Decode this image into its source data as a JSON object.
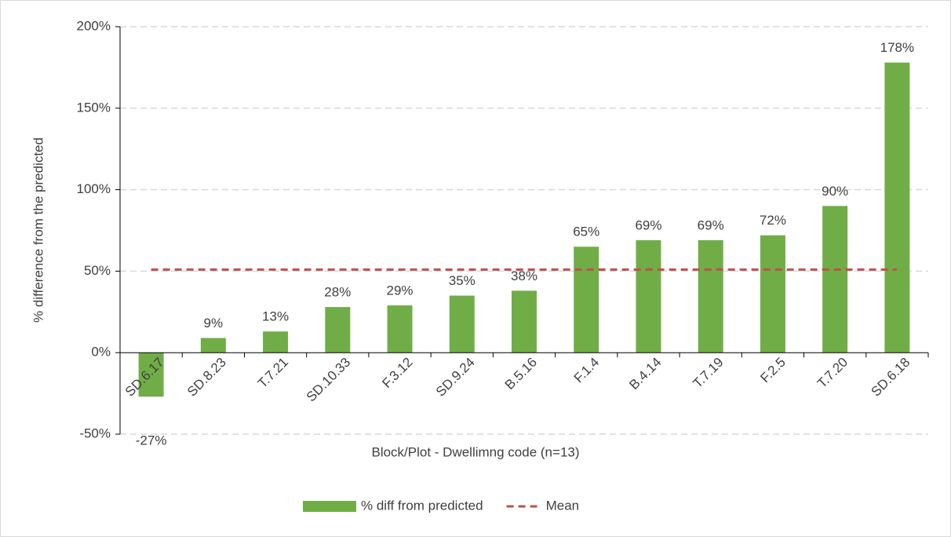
{
  "chart_data": {
    "type": "bar",
    "categories": [
      "SD.6.17",
      "SD.8.23",
      "T.7.21",
      "SD.10.33",
      "F.3.12",
      "SD.9.24",
      "B.5.16",
      "F.1.4",
      "B.4.14",
      "T.7.19",
      "F.2.5",
      "T.7.20",
      "SD.6.18"
    ],
    "series": [
      {
        "name": "% diff from predicted",
        "color": "#70ad47",
        "values": [
          -27,
          9,
          13,
          28,
          29,
          35,
          38,
          65,
          69,
          69,
          72,
          90,
          178
        ],
        "value_labels": [
          "-27%",
          "9%",
          "13%",
          "28%",
          "29%",
          "35%",
          "38%",
          "65%",
          "69%",
          "69%",
          "72%",
          "90%",
          "178%"
        ]
      },
      {
        "name": "Mean",
        "color": "#c0504d",
        "type": "line",
        "dashed": true,
        "values": [
          51,
          51,
          51,
          51,
          51,
          51,
          51,
          51,
          51,
          51,
          51,
          51,
          51
        ]
      }
    ],
    "x_label": "Block/Plot - Dwellimng code (n=13)",
    "y_label": "% difference from the predicted",
    "ylim": [
      -50,
      200
    ],
    "yticks": [
      {
        "value": -50,
        "label": "-50%"
      },
      {
        "value": 0,
        "label": "0%"
      },
      {
        "value": 50,
        "label": "50%"
      },
      {
        "value": 100,
        "label": "100%"
      },
      {
        "value": 150,
        "label": "150%"
      },
      {
        "value": 200,
        "label": "200%"
      }
    ],
    "grid": true,
    "legend": "bottom"
  }
}
